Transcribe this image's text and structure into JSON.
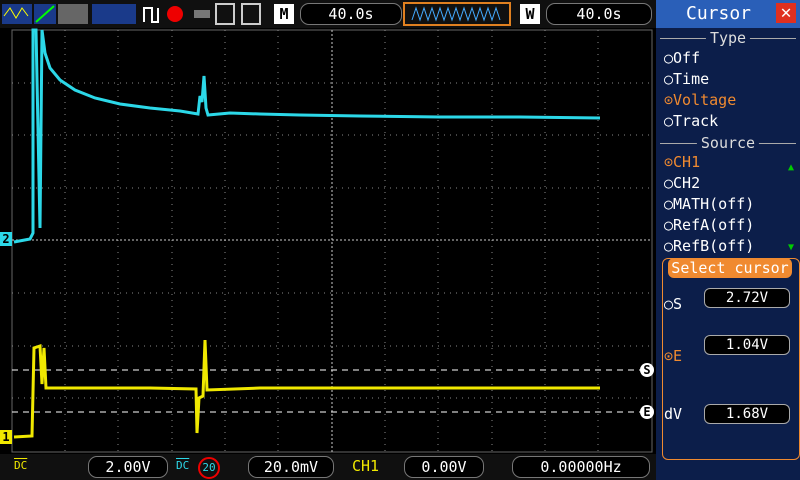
{
  "top_bar": {
    "timebase_label": "M",
    "timebase": "40.0s",
    "window_label": "W",
    "window": "40.0s"
  },
  "markers": {
    "ch2": "2",
    "ch1": "1",
    "cursor_s": "S",
    "cursor_e": "E"
  },
  "cursor_panel": {
    "title": "Cursor",
    "type": {
      "heading": "Type",
      "options": [
        "Off",
        "Time",
        "Voltage",
        "Track"
      ]
    },
    "source": {
      "heading": "Source",
      "options": [
        "CH1",
        "CH2",
        "MATH(off)",
        "RefA(off)",
        "RefB(off)"
      ]
    },
    "select": {
      "heading": "Select cursor",
      "start_label": "S",
      "start": "2.72V",
      "end_label": "E",
      "end": "1.04V",
      "delta_label": "dV",
      "delta": "1.68V"
    }
  },
  "bottom_bar": {
    "ch1_coupling": "DC",
    "ch1_scale": "2.00V",
    "ch2_coupling": "DC",
    "ch2_bw": "20",
    "ch2_scale": "20.0mV",
    "trigger_source": "CH1",
    "trigger_level": "0.00V",
    "frequency": "0.00000Hz"
  }
}
